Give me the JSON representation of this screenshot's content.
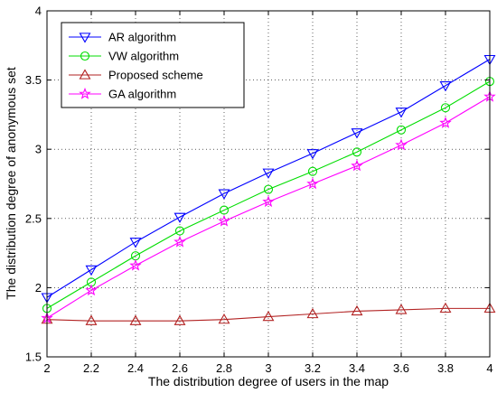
{
  "chart_data": {
    "type": "line",
    "title": "",
    "xlabel": "The distribution degree of users in the map",
    "ylabel": "The distribution degree of anonymous set",
    "xlim": [
      2,
      4
    ],
    "ylim": [
      1.5,
      4
    ],
    "xticks": [
      2,
      2.2,
      2.4,
      2.6,
      2.8,
      3,
      3.2,
      3.4,
      3.6,
      3.8,
      4
    ],
    "xtick_labels": [
      "2",
      "2.2",
      "2.4",
      "2.6",
      "2.8",
      "3",
      "3.2",
      "3.4",
      "3.6",
      "3.8",
      "4"
    ],
    "yticks": [
      1.5,
      2,
      2.5,
      3,
      3.5,
      4
    ],
    "ytick_labels": [
      "1.5",
      "2",
      "2.5",
      "3",
      "3.5",
      "4"
    ],
    "grid": true,
    "legend_position": "top-left",
    "x": [
      2,
      2.2,
      2.4,
      2.6,
      2.8,
      3,
      3.2,
      3.4,
      3.6,
      3.8,
      4
    ],
    "series": [
      {
        "name": "AR algorithm",
        "color": "#0000ff",
        "marker": "triangle-down",
        "values": [
          1.93,
          2.13,
          2.33,
          2.51,
          2.68,
          2.83,
          2.97,
          3.12,
          3.27,
          3.46,
          3.65
        ]
      },
      {
        "name": "VW  algorithm",
        "color": "#00dd00",
        "marker": "circle",
        "values": [
          1.85,
          2.04,
          2.23,
          2.41,
          2.56,
          2.71,
          2.84,
          2.98,
          3.14,
          3.3,
          3.49
        ]
      },
      {
        "name": "Proposed  scheme",
        "color": "#b22222",
        "marker": "triangle-up",
        "values": [
          1.77,
          1.76,
          1.76,
          1.76,
          1.77,
          1.79,
          1.81,
          1.83,
          1.84,
          1.85,
          1.85
        ]
      },
      {
        "name": "GA  algorithm",
        "color": "#ff00ff",
        "marker": "star",
        "values": [
          1.78,
          1.98,
          2.16,
          2.33,
          2.48,
          2.62,
          2.75,
          2.88,
          3.03,
          3.19,
          3.38
        ]
      }
    ]
  }
}
